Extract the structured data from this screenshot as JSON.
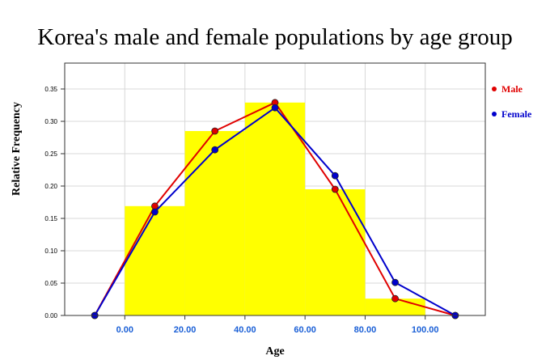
{
  "chart_data": {
    "type": "bar",
    "title": "Korea's male and female populations by age group",
    "xlabel": "Age",
    "ylabel": "Relative Frequency",
    "xlim": [
      -20,
      120
    ],
    "ylim": [
      0,
      0.39
    ],
    "x_ticks": [
      "0.00",
      "20.00",
      "40.00",
      "60.00",
      "80.00",
      "100.00"
    ],
    "y_ticks": [
      "0.00",
      "0.05",
      "0.10",
      "0.15",
      "0.20",
      "0.25",
      "0.30",
      "0.35"
    ],
    "grid": true,
    "legend_position": "right",
    "histogram": {
      "color": "#ffff00",
      "bins": [
        {
          "start": 0,
          "end": 20,
          "value": 0.169
        },
        {
          "start": 20,
          "end": 40,
          "value": 0.285
        },
        {
          "start": 40,
          "end": 60,
          "value": 0.329
        },
        {
          "start": 60,
          "end": 80,
          "value": 0.195
        },
        {
          "start": 80,
          "end": 100,
          "value": 0.026
        }
      ]
    },
    "series": [
      {
        "name": "Male",
        "color": "#e00000",
        "x": [
          -10,
          10,
          30,
          50,
          70,
          90,
          110
        ],
        "y": [
          0.0,
          0.169,
          0.285,
          0.329,
          0.195,
          0.026,
          0.0
        ]
      },
      {
        "name": "Female",
        "color": "#0000cc",
        "x": [
          -10,
          10,
          30,
          50,
          70,
          90,
          110
        ],
        "y": [
          0.0,
          0.16,
          0.256,
          0.321,
          0.216,
          0.051,
          0.0
        ]
      }
    ],
    "colors": {
      "tick_x": "#1a5fd6",
      "grid": "#d8d8d8",
      "axis": "#333333"
    }
  }
}
